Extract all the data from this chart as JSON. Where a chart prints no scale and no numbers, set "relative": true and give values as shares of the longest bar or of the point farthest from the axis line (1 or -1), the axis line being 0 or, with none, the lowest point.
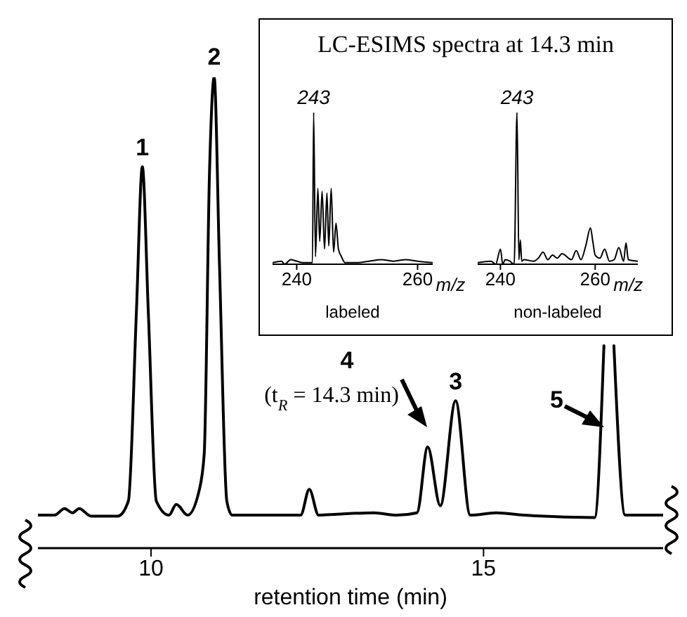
{
  "chart_data": [
    {
      "type": "line",
      "xlabel": "retention time (min)",
      "relative": true,
      "xlim": [
        8.3,
        17.7
      ],
      "xticks": [
        10,
        15
      ],
      "x": [
        8.3,
        8.55,
        8.7,
        8.82,
        8.92,
        9.1,
        9.5,
        9.66,
        9.78,
        9.87,
        9.96,
        10.08,
        10.27,
        10.38,
        10.55,
        10.72,
        10.8,
        10.88,
        10.95,
        11.03,
        11.14,
        11.22,
        11.8,
        12.25,
        12.38,
        12.52,
        12.8,
        13.35,
        13.7,
        14.0,
        14.16,
        14.35,
        14.58,
        14.8,
        15.19,
        15.6,
        16.67,
        16.81,
        16.88,
        16.96,
        17.13,
        17.7
      ],
      "series": [
        {
          "color": "#000000",
          "values": [
            0.07,
            0.07,
            0.084,
            0.075,
            0.084,
            0.068,
            0.068,
            0.1,
            0.5,
            0.81,
            0.5,
            0.1,
            0.07,
            0.093,
            0.07,
            0.12,
            0.2,
            0.8,
            1.0,
            0.6,
            0.1,
            0.07,
            0.07,
            0.07,
            0.125,
            0.07,
            0.072,
            0.075,
            0.07,
            0.075,
            0.215,
            0.09,
            0.313,
            0.07,
            0.075,
            0.07,
            0.065,
            0.43,
            null,
            0.43,
            0.07,
            0.07
          ]
        }
      ],
      "annotations": [
        {
          "text": "1",
          "x": 9.87,
          "y": 0.81
        },
        {
          "text": "2",
          "x": 10.95,
          "y": 1.0
        },
        {
          "text": "3",
          "x": 14.58,
          "y": 0.313
        },
        "4",
        "(t$_{R}$ = 14.3 min)",
        {
          "text": "5",
          "x": 16.88,
          "y": 0.43
        }
      ]
    },
    {
      "type": "line",
      "title": "LC-ESIMS spectra at 14.3 min",
      "xlabel": "labeled",
      "relative": true,
      "xlim": [
        236,
        262.5
      ],
      "xticks": [
        240,
        260
      ],
      "x": [
        236,
        237.5,
        238,
        239,
        240,
        241,
        242.6,
        242.8,
        243.1,
        243.5,
        243.8,
        244.2,
        244.6,
        245,
        245.3,
        245.7,
        246.1,
        246.5,
        246.9,
        247.4,
        248,
        250,
        252,
        254,
        256,
        258,
        260,
        262.5
      ],
      "series": [
        {
          "color": "#000000",
          "values": [
            0.01,
            0.02,
            0.0,
            0.03,
            0.02,
            0.01,
            0.01,
            1.0,
            0.05,
            0.5,
            0.15,
            0.48,
            0.1,
            0.47,
            0.12,
            0.5,
            0.08,
            0.27,
            0.1,
            0.05,
            0.01,
            0.01,
            0.02,
            0.03,
            0.02,
            0.03,
            0.02,
            0.01
          ]
        }
      ],
      "annotations": [
        {
          "text": "243",
          "x": 242.8,
          "y": 1.0
        },
        "m/z"
      ]
    },
    {
      "type": "line",
      "xlabel": "non-labeled",
      "relative": true,
      "xlim": [
        235.2,
        269
      ],
      "xticks": [
        240,
        260
      ],
      "x": [
        235.2,
        238,
        239,
        240,
        240.5,
        241,
        242,
        242.9,
        243.5,
        243.9,
        244.2,
        244.5,
        245,
        247,
        248,
        249,
        250,
        251,
        252,
        253,
        255,
        256,
        257,
        258,
        259,
        259.5,
        260,
        261,
        262,
        263,
        264,
        265,
        266,
        266.5,
        267,
        269
      ],
      "series": [
        {
          "color": "#000000",
          "values": [
            0.01,
            0.02,
            0.0,
            0.1,
            0.0,
            0.03,
            0.02,
            0.0,
            1.0,
            0.03,
            0.16,
            0.02,
            0.03,
            0.02,
            0.04,
            0.08,
            0.03,
            0.06,
            0.04,
            0.07,
            0.03,
            0.09,
            0.03,
            0.12,
            0.24,
            0.15,
            0.06,
            0.04,
            0.1,
            0.02,
            0.03,
            0.11,
            0.02,
            0.14,
            0.03,
            0.02
          ]
        }
      ],
      "annotations": [
        {
          "text": "243",
          "x": 243.5,
          "y": 1.0
        },
        "m/z"
      ]
    }
  ]
}
